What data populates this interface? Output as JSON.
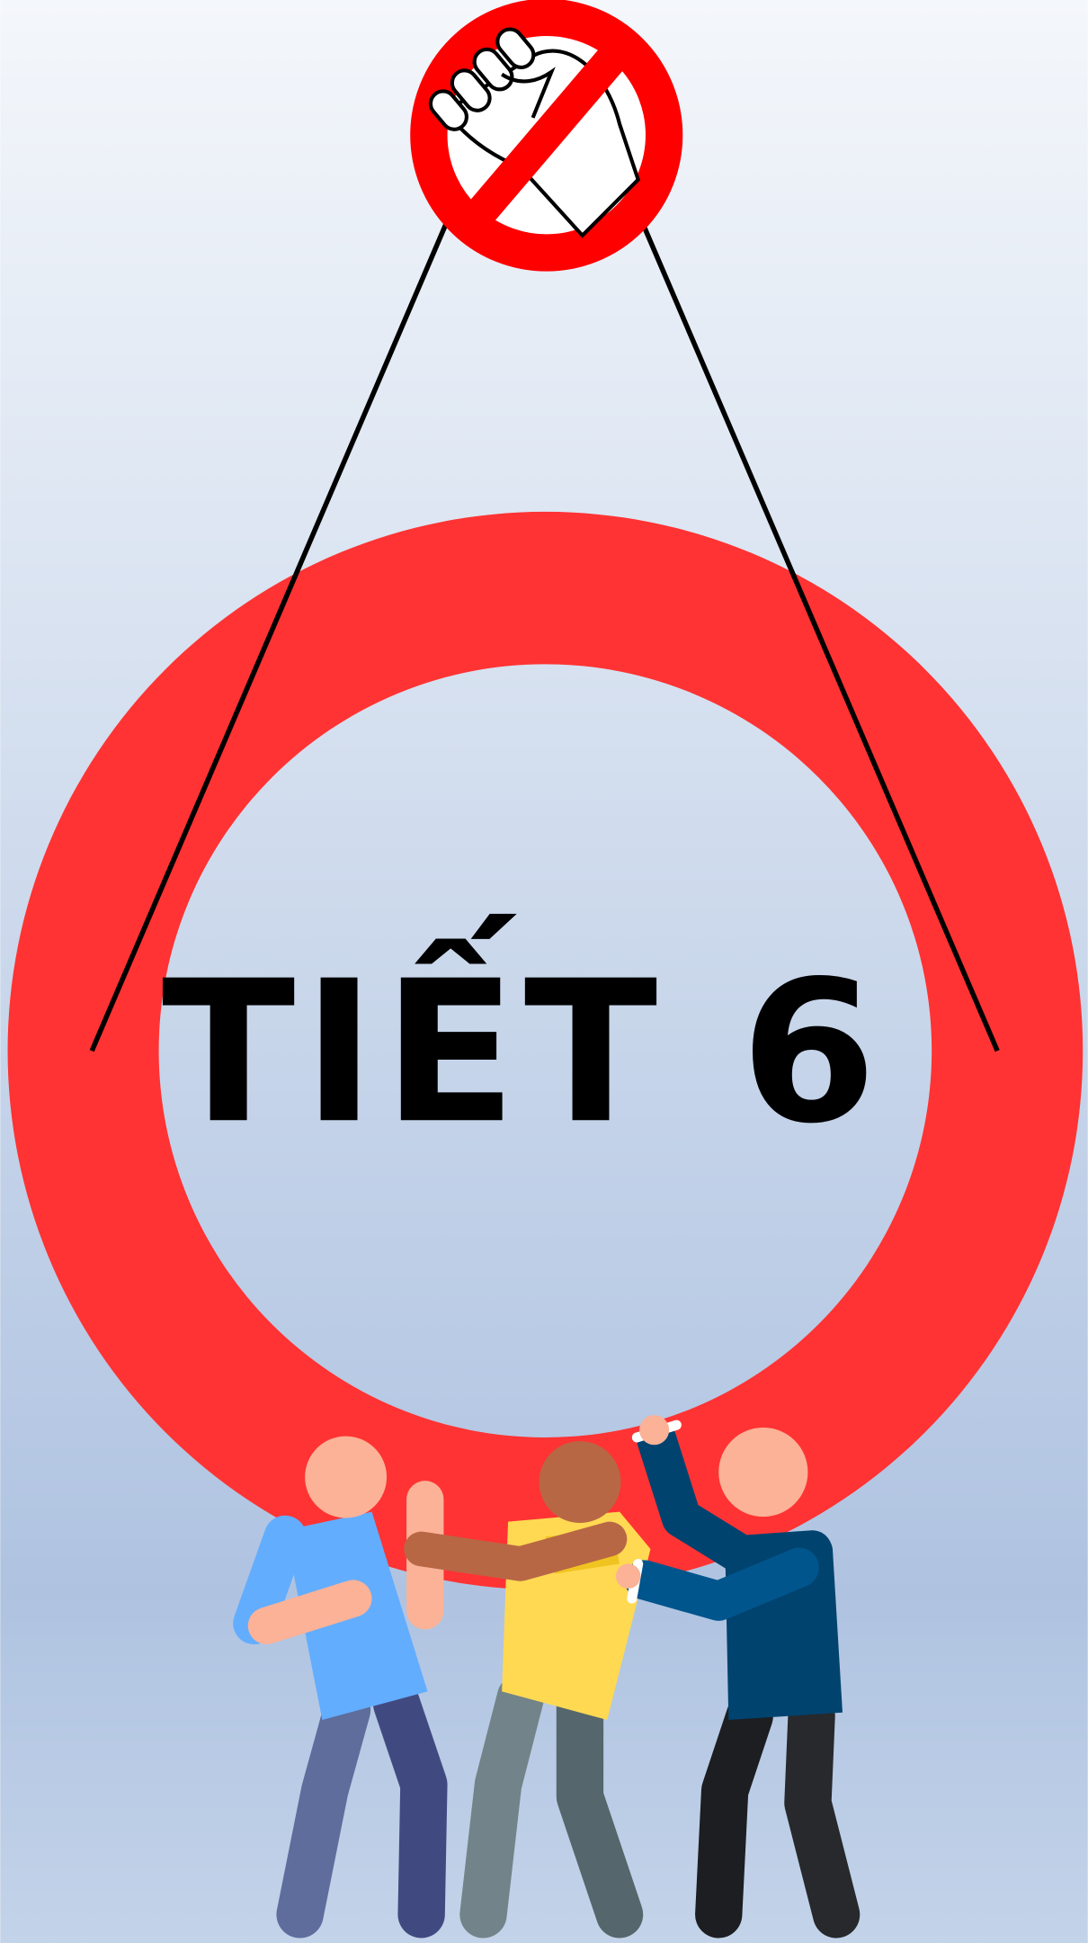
{
  "title": "TIẾT 6"
}
